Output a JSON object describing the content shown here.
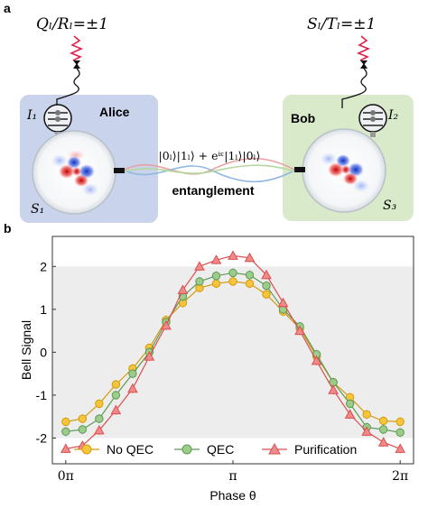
{
  "panel_a": {
    "label": "a",
    "alice": {
      "name": "Alice",
      "qubit": "I₁",
      "cavity": "S₁",
      "measurement": "Qₗ/Rₗ=±1"
    },
    "bob": {
      "name": "Bob",
      "qubit": "I₂",
      "cavity": "S₃",
      "measurement": "Sₗ/Tₗ=±1"
    },
    "state": "|0ₗ⟩|1ₗ⟩ + eⁱᵋ|1ₗ⟩|0ₗ⟩",
    "link_label": "entanglement"
  },
  "chart_data": {
    "type": "line",
    "panel_label": "b",
    "xlabel": "Phase θ",
    "ylabel": "Bell Signal",
    "xlim": [
      -0.08,
      2.08
    ],
    "ylim": [
      -2.6,
      2.7
    ],
    "x_ticks": [
      0,
      1,
      2
    ],
    "x_tick_labels": [
      "0π",
      "π",
      "2π"
    ],
    "y_ticks": [
      -2,
      -1,
      0,
      1,
      2
    ],
    "y_tick_labels": [
      "-2",
      "-1",
      "0",
      "1",
      "2"
    ],
    "shaded_band": [
      -2,
      2
    ],
    "x": [
      0,
      0.1,
      0.2,
      0.3,
      0.4,
      0.5,
      0.6,
      0.7,
      0.8,
      0.9,
      1.0,
      1.1,
      1.2,
      1.3,
      1.4,
      1.5,
      1.6,
      1.7,
      1.8,
      1.9,
      2.0
    ],
    "legend_position": "bottom",
    "series": [
      {
        "name": "No QEC",
        "color": "#f5c53a",
        "edge": "#d49a10",
        "marker": "circle",
        "values": [
          -1.62,
          -1.55,
          -1.2,
          -0.75,
          -0.38,
          0.1,
          0.75,
          1.15,
          1.5,
          1.6,
          1.65,
          1.6,
          1.35,
          0.95,
          0.55,
          -0.1,
          -0.7,
          -1.05,
          -1.45,
          -1.6,
          -1.62
        ]
      },
      {
        "name": "QEC",
        "color": "#9ccb8a",
        "edge": "#5d9a55",
        "marker": "circle",
        "values": [
          -1.85,
          -1.8,
          -1.55,
          -1.0,
          -0.5,
          0.0,
          0.7,
          1.3,
          1.65,
          1.78,
          1.85,
          1.8,
          1.55,
          1.0,
          0.6,
          -0.05,
          -0.7,
          -1.2,
          -1.75,
          -1.8,
          -1.87
        ]
      },
      {
        "name": "Purification",
        "color": "#f08a8a",
        "edge": "#d9504f",
        "marker": "triangle",
        "values": [
          -2.25,
          -2.18,
          -1.82,
          -1.35,
          -0.85,
          -0.1,
          0.62,
          1.45,
          2.0,
          2.15,
          2.25,
          2.2,
          1.8,
          1.15,
          0.5,
          -0.2,
          -0.88,
          -1.45,
          -1.85,
          -2.1,
          -2.25
        ]
      }
    ]
  }
}
